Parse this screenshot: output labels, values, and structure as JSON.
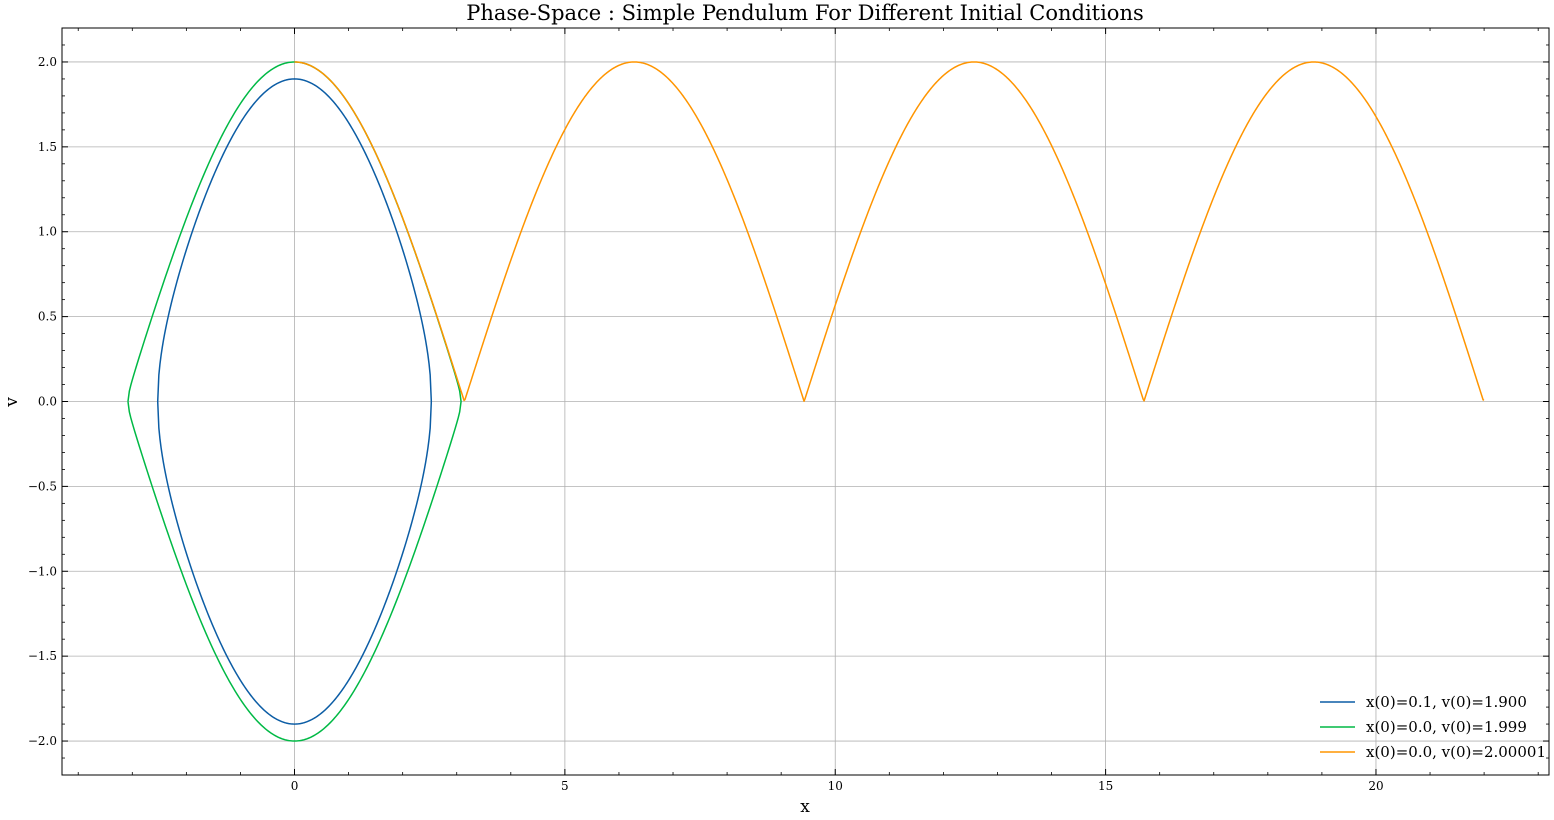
{
  "chart_data": {
    "type": "line",
    "title": "Phase-Space : Simple Pendulum For Different Initial Conditions",
    "xlabel": "x",
    "ylabel": "v",
    "xlim": [
      -4.3,
      23.2
    ],
    "ylim": [
      -2.2,
      2.2
    ],
    "xticks": [
      0,
      5,
      10,
      15,
      20
    ],
    "xtick_labels": [
      "0",
      "5",
      "10",
      "15",
      "20"
    ],
    "yticks": [
      -2.0,
      -1.5,
      -1.0,
      -0.5,
      0.0,
      0.5,
      1.0,
      1.5,
      2.0
    ],
    "ytick_labels": [
      "−2.0",
      "−1.5",
      "−1.0",
      "−0.5",
      "0.0",
      "0.5",
      "1.0",
      "1.5",
      "2.0"
    ],
    "grid": true,
    "legend_position": "bottom-right",
    "series": [
      {
        "name": "x(0)=0.1, v(0)=1.900",
        "color": "#0c5da5",
        "model": "closed-orbit",
        "x0": 0.1,
        "v0": 1.9,
        "x_range": [
          -2.53,
          2.53
        ],
        "v_extent": [
          -1.9,
          1.9
        ]
      },
      {
        "name": "x(0)=0.0, v(0)=1.999",
        "color": "#00b945",
        "model": "closed-orbit",
        "x0": 0.0,
        "v0": 1.999,
        "x_range": [
          -3.08,
          3.08
        ],
        "v_extent": [
          -2.0,
          2.0
        ]
      },
      {
        "name": "x(0)=0.0, v(0)=2.00001",
        "color": "#ff9500",
        "model": "rotating",
        "x0": 0.0,
        "v0": 2.00001,
        "x_range": [
          0.0,
          22.0
        ],
        "v_extent": [
          0.0,
          2.0
        ]
      }
    ]
  }
}
